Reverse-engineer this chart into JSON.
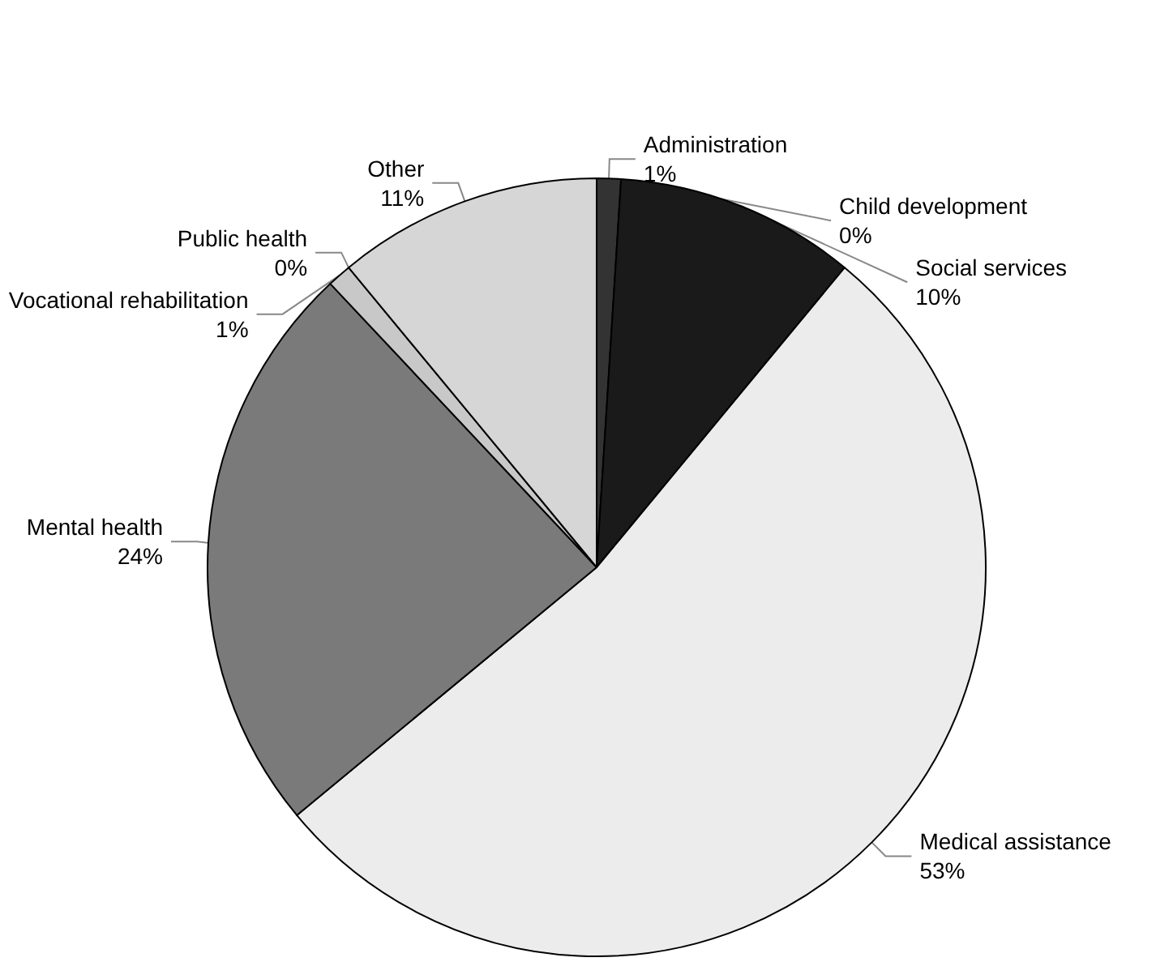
{
  "chart_data": {
    "type": "pie",
    "categories": [
      "Administration",
      "Child development",
      "Social services",
      "Medical assistance",
      "Mental health",
      "Vocational rehabilitation",
      "Public health",
      "Other"
    ],
    "values": [
      1,
      0,
      10,
      53,
      24,
      1,
      0,
      11
    ],
    "value_labels": [
      "1%",
      "0%",
      "10%",
      "53%",
      "24%",
      "1%",
      "0%",
      "11%"
    ],
    "colors": [
      "#333333",
      "#555555",
      "#1a1a1a",
      "#ececec",
      "#7a7a7a",
      "#c8c8c8",
      "#ffffff",
      "#d6d6d6"
    ],
    "legend": false
  }
}
